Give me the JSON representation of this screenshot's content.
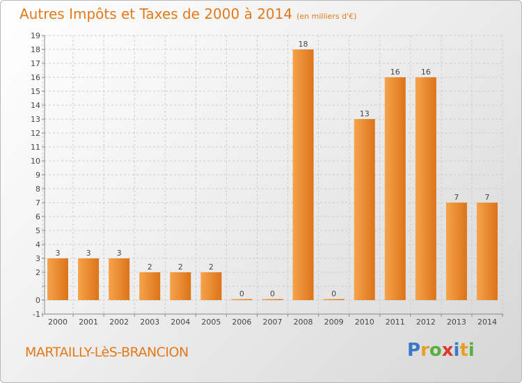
{
  "header": {
    "title": "Autres Impôts et Taxes de 2000 à 2014",
    "subtitle": "(en milliers d'€)"
  },
  "footer": {
    "commune": "MARTAILLY-LèS-BRANCION",
    "logo_letters": [
      "P",
      "r",
      "o",
      "x",
      "i",
      "t",
      "i"
    ],
    "logo_colors": [
      "#3a78c8",
      "#e6a020",
      "#58b040",
      "#d93a2c",
      "#3a78c8",
      "#e6a020",
      "#58b040"
    ]
  },
  "colors": {
    "bar_light": "#f6a34c",
    "bar_dark": "#dc7418",
    "grid": "#cccccc",
    "axis": "#888888",
    "text": "#444444"
  },
  "chart_data": {
    "type": "bar",
    "categories": [
      "2000",
      "2001",
      "2002",
      "2003",
      "2004",
      "2005",
      "2006",
      "2007",
      "2008",
      "2009",
      "2010",
      "2011",
      "2012",
      "2013",
      "2014"
    ],
    "values": [
      3,
      3,
      3,
      2,
      2,
      2,
      0,
      0,
      18,
      0,
      13,
      16,
      16,
      7,
      7
    ],
    "value_labels": [
      "3",
      "3",
      "3",
      "2",
      "2",
      "2",
      "0",
      "0",
      "18",
      "0",
      "13",
      "16",
      "16",
      "7",
      "7"
    ],
    "yticks": [
      -1,
      0,
      1,
      2,
      3,
      4,
      5,
      6,
      7,
      8,
      9,
      10,
      11,
      12,
      13,
      14,
      15,
      16,
      17,
      18,
      19
    ],
    "ytick_labels": [
      "-1",
      "0",
      "",
      "2",
      "3",
      "4",
      "5",
      "6",
      "7",
      "8",
      "9",
      "10",
      "11",
      "12",
      "13",
      "14",
      "15",
      "16",
      "17",
      "18",
      "19"
    ],
    "ylim": [
      -1,
      19
    ],
    "grid": true
  }
}
